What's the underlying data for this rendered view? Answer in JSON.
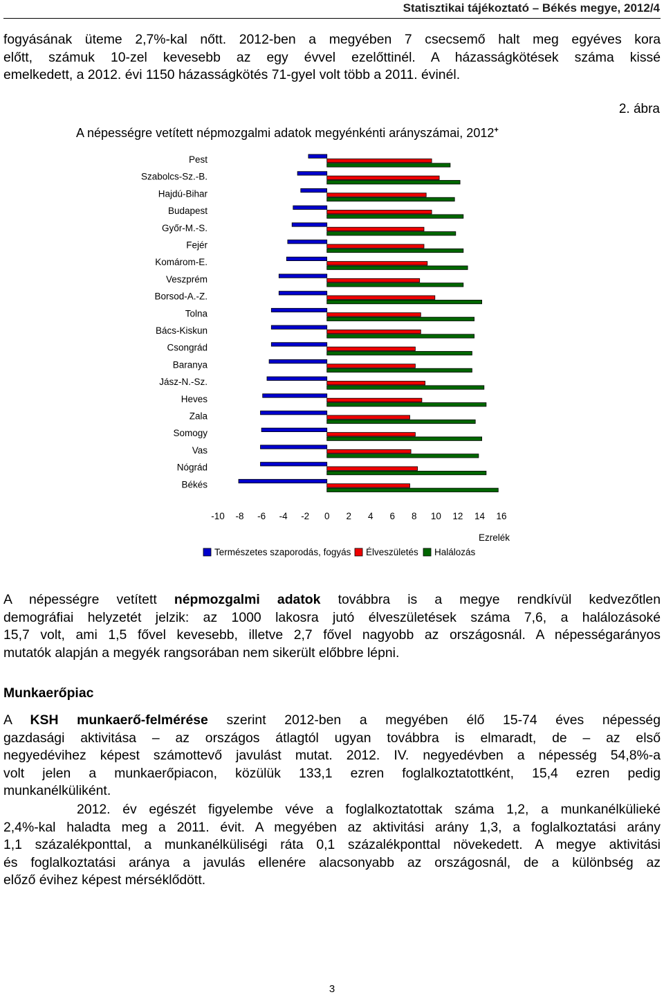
{
  "header": {
    "running_title": "Statisztikai tájékoztató – Békés megye, 2012/4"
  },
  "intro_lines": [
    "fogyásának üteme 2,7%-kal nőtt. 2012-ben a megyében 7 csecsemő halt meg egyéves kora",
    "előtt, számuk 10-zel kevesebb az egy évvel ezelőttinél. A házasságkötések száma kissé",
    "emelkedett, a 2012. évi 1150 házasságkötés 71-gyel volt több a 2011. évinél."
  ],
  "figure": {
    "label": "2. ábra",
    "title": "A népességre vetített népmozgalmi adatok megyénkénti arányszámai, 2012",
    "title_sup": "+"
  },
  "chart_data": {
    "type": "bar",
    "orientation": "horizontal",
    "title": "A népességre vetített népmozgalmi adatok megyénkénti arányszámai, 2012+",
    "categories": [
      "Pest",
      "Szabolcs-Sz.-B.",
      "Hajdú-Bihar",
      "Budapest",
      "Győr-M.-S.",
      "Fejér",
      "Komárom-E.",
      "Veszprém",
      "Borsod-A.-Z.",
      "Tolna",
      "Bács-Kiskun",
      "Csongrád",
      "Baranya",
      "Jász-N.-Sz.",
      "Heves",
      "Zala",
      "Somogy",
      "Vas",
      "Nógrád",
      "Békés"
    ],
    "series": [
      {
        "name": "Természetes szaporodás, fogyás",
        "color": "#0000cc",
        "values": [
          -1.7,
          -2.7,
          -2.4,
          -3.1,
          -3.2,
          -3.6,
          -3.7,
          -4.4,
          -4.4,
          -5.1,
          -5.1,
          -5.1,
          -5.3,
          -5.5,
          -5.9,
          -6.1,
          -6.0,
          -6.1,
          -6.1,
          -8.1
        ]
      },
      {
        "name": "Élveszületés",
        "color": "#ee0000",
        "values": [
          9.6,
          10.3,
          9.1,
          9.6,
          8.9,
          8.9,
          9.2,
          8.5,
          9.9,
          8.6,
          8.6,
          8.1,
          8.1,
          9.0,
          8.7,
          7.6,
          8.1,
          7.7,
          8.3,
          7.6
        ]
      },
      {
        "name": "Halálozás",
        "color": "#006600",
        "values": [
          11.3,
          12.2,
          11.7,
          12.5,
          11.8,
          12.5,
          12.9,
          12.5,
          14.2,
          13.5,
          13.5,
          13.3,
          13.3,
          14.4,
          14.6,
          13.6,
          14.2,
          13.9,
          14.6,
          15.7
        ]
      }
    ],
    "xlim": [
      -10,
      16
    ],
    "xticks": [
      -10,
      -8,
      -6,
      -4,
      -2,
      0,
      2,
      4,
      6,
      8,
      10,
      12,
      14,
      16
    ],
    "xlabel": "Ezrelék",
    "grid": false,
    "legend_position": "bottom"
  },
  "para_2_lines": [
    [
      {
        "t": "A népességre vetített "
      },
      {
        "t": "népmozgalmi adatok",
        "b": true
      },
      {
        "t": " továbbra is a megye rendkívül kedvezőtlen"
      }
    ],
    [
      {
        "t": "demográfiai helyzetét jelzik: az 1000 lakosra jutó élveszületések száma 7,6, a halálozásoké"
      }
    ],
    [
      {
        "t": "15,7 volt, ami 1,5 fővel kevesebb, illetve 2,7 fővel nagyobb az országosnál. A népességarányos"
      }
    ],
    [
      {
        "t": "mutatók alapján a megyék rangsorában nem sikerült előbbre lépni."
      }
    ]
  ],
  "section": {
    "heading": "Munkaerőpiac"
  },
  "para_3_lines": [
    [
      {
        "t": "A "
      },
      {
        "t": "KSH munkaerő-felmérése",
        "b": true
      },
      {
        "t": " szerint 2012-ben a megyében élő 15-74 éves népesség"
      }
    ],
    [
      {
        "t": "gazdasági aktivitása – az országos átlagtól ugyan továbbra is elmaradt, de – az első"
      }
    ],
    [
      {
        "t": "negyedévihez képest számottevő javulást mutat. 2012. IV. negyedévben a népesség 54,8%-a"
      }
    ],
    [
      {
        "t": "volt jelen a munkaerőpiacon, közülük 133,1 ezren foglalkoztatottként, 15,4 ezren pedig"
      }
    ],
    [
      {
        "t": "munkanélküliként."
      }
    ]
  ],
  "para_4_lines": [
    [
      {
        "t": "      2012. év egészét figyelembe véve a foglalkoztatottak száma 1,2, a munkanélkülieké"
      }
    ],
    [
      {
        "t": "2,4%-kal haladta meg a 2011. évit. A megyében az aktivitási arány 1,3, a foglalkoztatási arány"
      }
    ],
    [
      {
        "t": "1,1 százalékponttal, a munkanélküliségi ráta 0,1 százalékponttal növekedett. A megye aktivitási"
      }
    ],
    [
      {
        "t": "és foglalkoztatási aránya a javulás ellenére alacsonyabb az országosnál, de a különbség az"
      }
    ],
    [
      {
        "t": "előző évihez képest mérséklődött."
      }
    ]
  ],
  "footer": {
    "page_number": "3"
  }
}
